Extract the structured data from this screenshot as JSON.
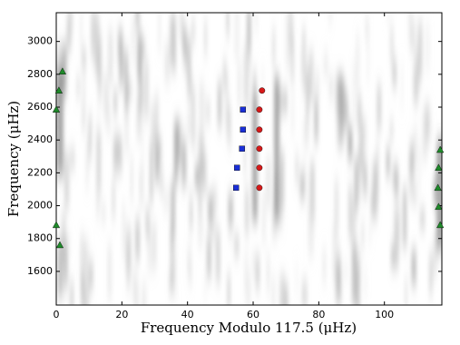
{
  "chart_data": {
    "type": "scatter",
    "xlabel": "Frequency Modulo 117.5 (μHz)",
    "ylabel": "Frequency (μHz)",
    "xlim": [
      0,
      117.5
    ],
    "ylim": [
      1395,
      3175
    ],
    "xticks": [
      0,
      20,
      40,
      60,
      80,
      100
    ],
    "yticks": [
      1600,
      1800,
      2000,
      2200,
      2400,
      2600,
      2800,
      3000
    ],
    "series": [
      {
        "color": "#1f8a2a",
        "marker": "triangle",
        "x": [
          1.9,
          0.8,
          0,
          0,
          1.1,
          117,
          116.5,
          116.3,
          116.5,
          117
        ],
        "values": [
          2817,
          2701,
          2585,
          1882,
          1760,
          2340,
          2231,
          2109,
          1993,
          1882
        ]
      },
      {
        "color": "#1a2fd6",
        "marker": "square",
        "x": [
          56.9,
          56.9,
          56.6,
          55.1,
          54.8
        ],
        "values": [
          2585,
          2463,
          2347,
          2231,
          2109
        ]
      },
      {
        "color": "#d61a1a",
        "marker": "circle",
        "x": [
          62.7,
          61.9,
          61.9,
          61.9,
          61.9,
          61.9
        ],
        "values": [
          2701,
          2585,
          2463,
          2347,
          2231,
          2109
        ]
      }
    ]
  }
}
